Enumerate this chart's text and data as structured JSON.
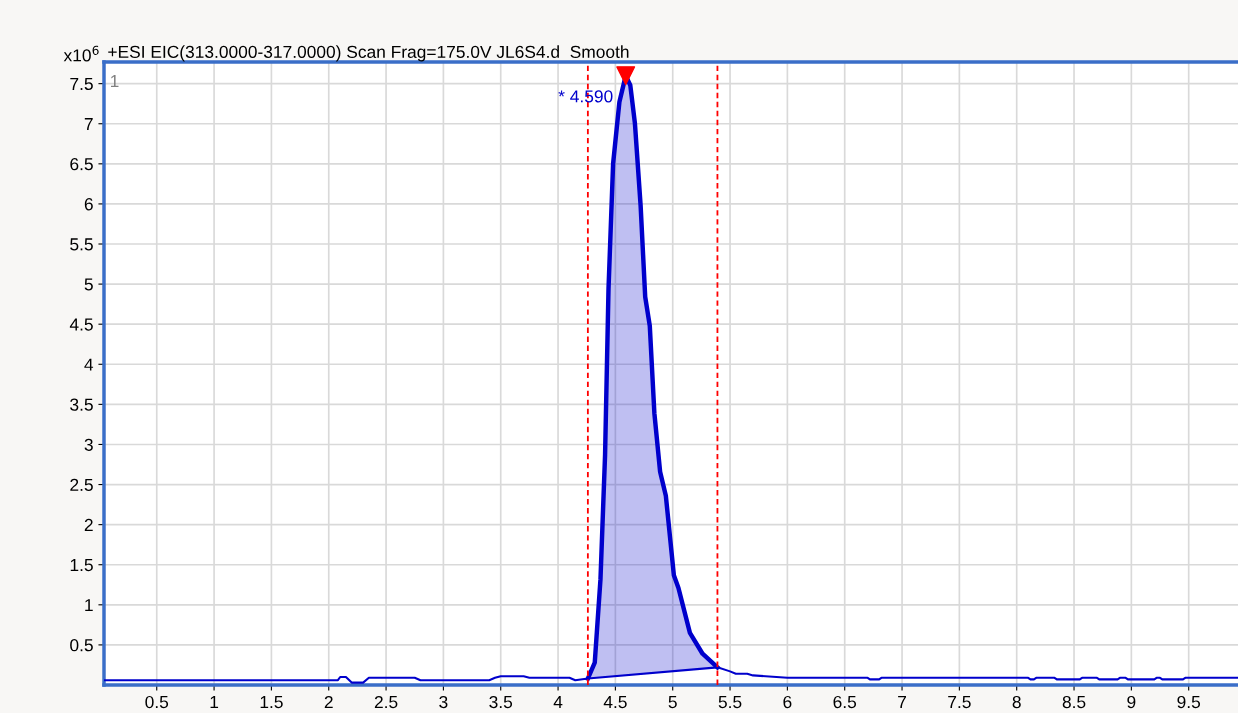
{
  "chart_data": {
    "type": "line",
    "title": "+ESI EIC(313.0000-317.0000) Scan Frag=175.0V JL6S4.d  Smooth",
    "xlim": [
      0.04,
      9.93
    ],
    "ylim": [
      0,
      7.77
    ],
    "xticks": [
      0.5,
      1,
      1.5,
      2,
      2.5,
      3,
      3.5,
      4,
      4.5,
      5,
      5.5,
      6,
      6.5,
      7,
      7.5,
      8,
      8.5,
      9,
      9.5
    ],
    "yticks": [
      0.5,
      1,
      1.5,
      2,
      2.5,
      3,
      3.5,
      4,
      4.5,
      5,
      5.5,
      6,
      6.5,
      7,
      7.5
    ],
    "grid": true,
    "series": [
      {
        "color": "#0000cc",
        "x": [
          0.04,
          2.08,
          2.1,
          2.15,
          2.2,
          2.3,
          2.35,
          2.75,
          2.8,
          3.4,
          3.45,
          3.5,
          3.7,
          3.75,
          4.1,
          4.15,
          4.26,
          5.39,
          5.5,
          5.55,
          5.65,
          5.7,
          6.0,
          6.7,
          6.72,
          6.8,
          6.82,
          8.1,
          8.12,
          8.15,
          8.17,
          8.33,
          8.35,
          8.55,
          8.57,
          8.7,
          8.72,
          8.88,
          8.9,
          8.95,
          8.97,
          9.2,
          9.22,
          9.25,
          9.27,
          9.45,
          9.47,
          9.93
        ],
        "values": [
          0.06,
          0.06,
          0.1,
          0.1,
          0.03,
          0.03,
          0.09,
          0.09,
          0.06,
          0.06,
          0.09,
          0.11,
          0.11,
          0.09,
          0.09,
          0.06,
          0.08,
          0.22,
          0.17,
          0.14,
          0.14,
          0.12,
          0.09,
          0.09,
          0.07,
          0.07,
          0.09,
          0.09,
          0.07,
          0.07,
          0.09,
          0.09,
          0.07,
          0.07,
          0.09,
          0.09,
          0.07,
          0.07,
          0.09,
          0.09,
          0.07,
          0.07,
          0.09,
          0.09,
          0.07,
          0.07,
          0.09,
          0.09
        ]
      },
      {
        "type": "area",
        "color": "#0000cc",
        "x": [
          4.26,
          4.32,
          4.37,
          4.41,
          4.44,
          4.48,
          4.535,
          4.59,
          4.63,
          4.67,
          4.72,
          4.76,
          4.8,
          4.84,
          4.89,
          4.94,
          5.01,
          5.05,
          5.15,
          5.26,
          5.39
        ],
        "values": [
          0.08,
          0.28,
          1.32,
          2.87,
          4.94,
          6.5,
          7.27,
          7.6,
          7.48,
          7.01,
          5.98,
          4.84,
          4.48,
          3.39,
          2.66,
          2.36,
          1.37,
          1.21,
          0.65,
          0.39,
          0.22
        ]
      },
      {
        "type": "scatter",
        "color": "#ff0000",
        "marker": "triangle",
        "x": [
          4.59
        ],
        "values": [
          7.6
        ]
      }
    ],
    "ref_lines": [
      {
        "axis": "x",
        "value": 4.26,
        "color": "#ff0000",
        "line_style": "dashed"
      },
      {
        "axis": "x",
        "value": 5.39,
        "color": "#ff0000",
        "line_style": "dashed"
      }
    ],
    "annotations": [
      "x10$^{6}$",
      "1",
      {
        "text": "* 4.590",
        "x": 4.59,
        "y": 7.6
      }
    ]
  }
}
